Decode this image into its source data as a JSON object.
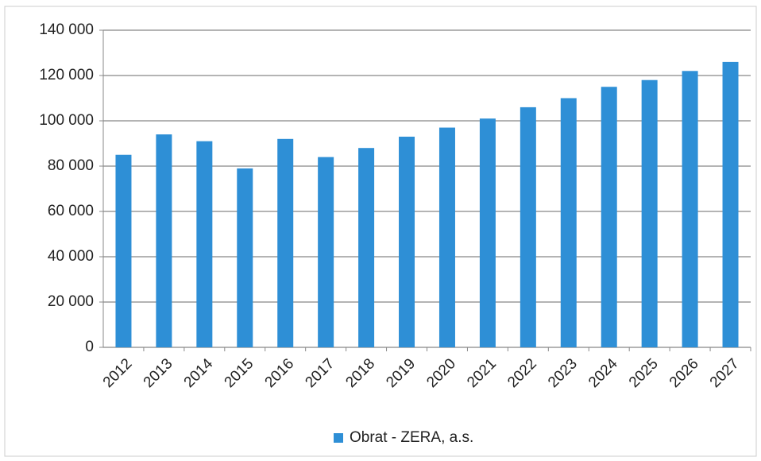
{
  "chart_data": {
    "type": "bar",
    "categories": [
      "2012",
      "2013",
      "2014",
      "2015",
      "2016",
      "2017",
      "2018",
      "2019",
      "2020",
      "2021",
      "2022",
      "2023",
      "2024",
      "2025",
      "2026",
      "2027"
    ],
    "series": [
      {
        "name": "Obrat - ZERA, a.s.",
        "color": "#2e8fd6",
        "values": [
          85000,
          94000,
          91000,
          79000,
          92000,
          84000,
          88000,
          93000,
          97000,
          101000,
          106000,
          110000,
          115000,
          118000,
          122000,
          126000
        ]
      }
    ],
    "ylim": [
      0,
      140000
    ],
    "yticks": [
      0,
      {
        "value": 20000,
        "label": "20 000"
      },
      {
        "value": 40000,
        "label": "40 000"
      },
      {
        "value": 60000,
        "label": "60 000"
      },
      {
        "value": 80000,
        "label": "80 000"
      },
      {
        "value": 100000,
        "label": "100 000"
      },
      {
        "value": 120000,
        "label": "120 000"
      },
      {
        "value": 140000,
        "label": "140 000"
      }
    ],
    "grid": true,
    "legend": "bottom"
  }
}
